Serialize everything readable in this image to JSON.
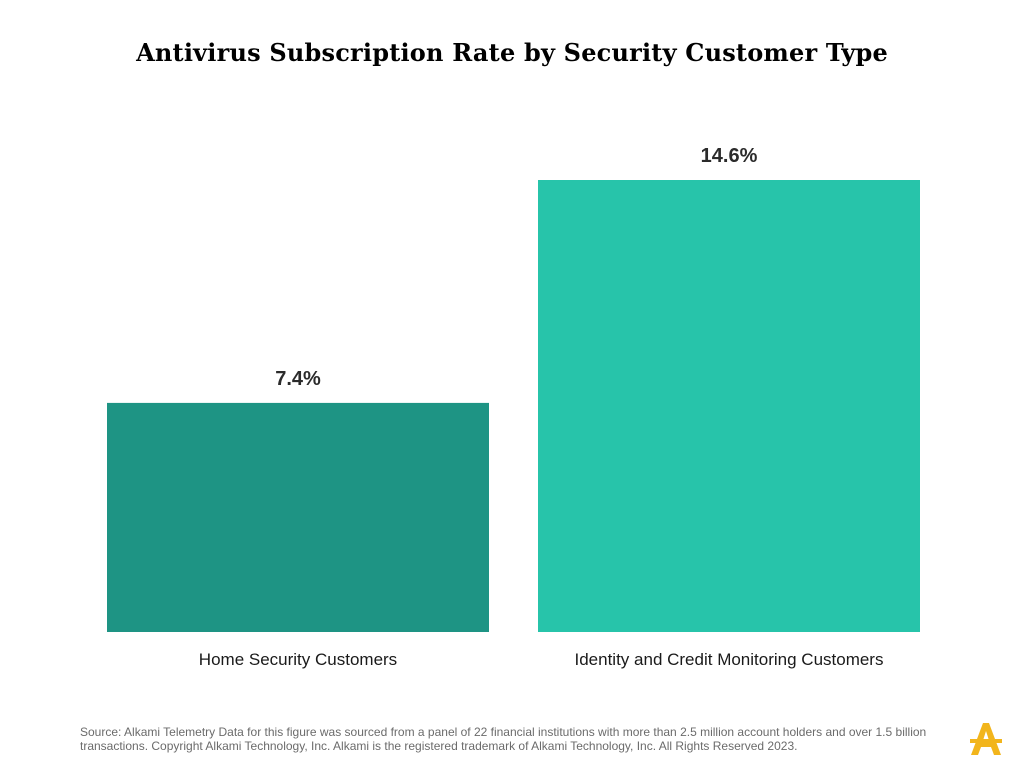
{
  "chart_data": {
    "type": "bar",
    "title": "Antivirus Subscription Rate by Security Customer Type",
    "categories": [
      "Home Security Customers",
      "Identity and Credit Monitoring Customers"
    ],
    "values": [
      7.4,
      14.6
    ],
    "value_labels": [
      "7.4%",
      "14.6%"
    ],
    "colors": [
      "#1e9484",
      "#27c4aa"
    ],
    "ylim": [
      0,
      14.6
    ],
    "grid": false,
    "legend": "none",
    "xlabel": "",
    "ylabel": ""
  },
  "footer": {
    "source": "Source: Alkami Telemetry Data for this figure was sourced from a panel of 22 financial institutions with more than 2.5 million account holders and over 1.5 billion transactions. Copyright Alkami Technology, Inc. Alkami is the registered trademark of Alkami Technology, Inc. All Rights Reserved 2023."
  },
  "logo": {
    "icon": "alkami-logo-icon",
    "color": "#f2b51c"
  }
}
